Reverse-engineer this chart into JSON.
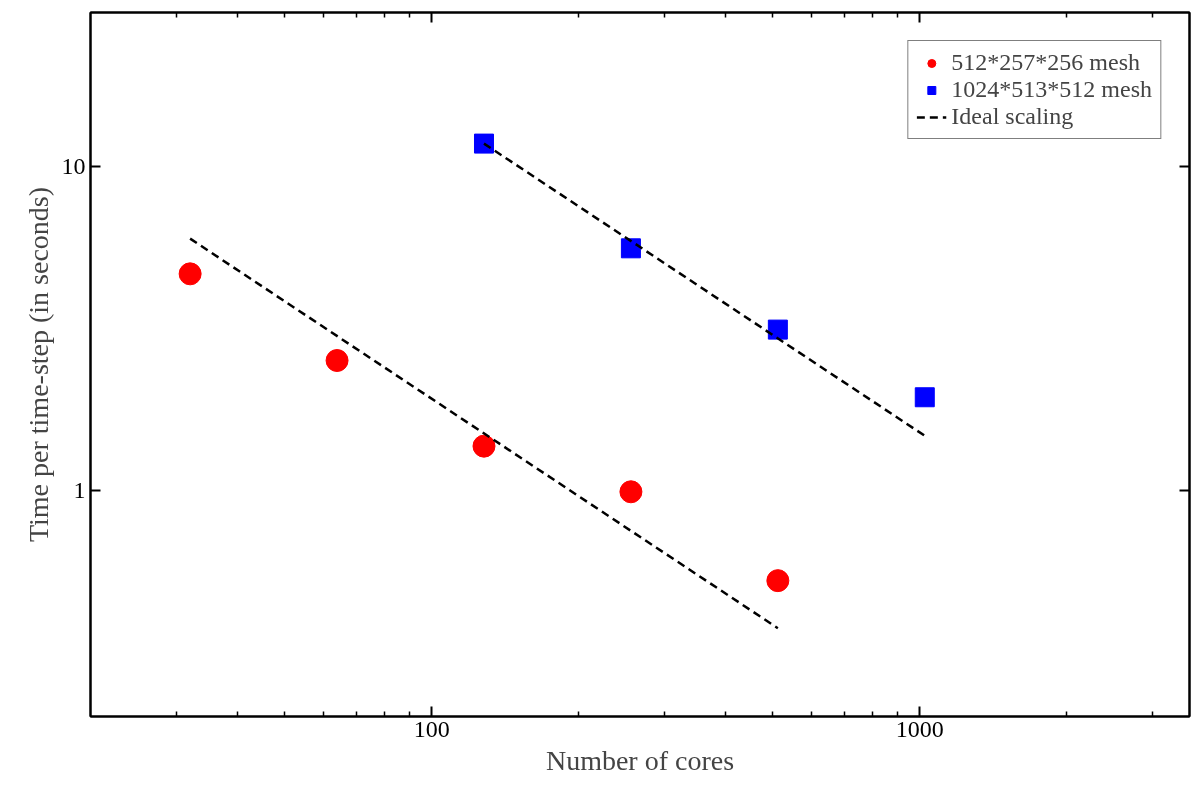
{
  "chart_data": {
    "type": "scatter",
    "xlabel": "Number of cores",
    "ylabel": "Time per time-step (in seconds)",
    "log": "xy",
    "xlim": [
      20,
      3570
    ],
    "ylim": [
      0.2,
      30
    ],
    "xticks": [
      {
        "value": 30,
        "label": null
      },
      {
        "value": 40,
        "label": null
      },
      {
        "value": 50,
        "label": null
      },
      {
        "value": 60,
        "label": null
      },
      {
        "value": 70,
        "label": null
      },
      {
        "value": 80,
        "label": null
      },
      {
        "value": 90,
        "label": null
      },
      100,
      {
        "value": 200,
        "label": null
      },
      {
        "value": 300,
        "label": null
      },
      {
        "value": 400,
        "label": null
      },
      {
        "value": 500,
        "label": null
      },
      {
        "value": 600,
        "label": null
      },
      {
        "value": 700,
        "label": null
      },
      {
        "value": 800,
        "label": null
      },
      {
        "value": 900,
        "label": null
      },
      1000,
      {
        "value": 2000,
        "label": null
      },
      {
        "value": 3000,
        "label": null
      }
    ],
    "yticks": [
      1,
      10
    ],
    "grid": false,
    "legend": "top right",
    "series": [
      {
        "name": "512*257*256 mesh",
        "marker": "circle",
        "color": "#ff0000",
        "x": [
          32,
          64,
          128,
          256,
          512
        ],
        "values": [
          4.67,
          2.52,
          1.37,
          0.99,
          0.526
        ]
      },
      {
        "name": "1024*513*512 mesh",
        "marker": "square",
        "color": "#0000ff",
        "x": [
          128,
          256,
          512,
          1024
        ],
        "values": [
          11.8,
          5.6,
          3.14,
          1.94
        ]
      },
      {
        "name": "Ideal scaling",
        "type": "line",
        "line_style": "dashed",
        "color": "#000000",
        "x": [
          32,
          512
        ],
        "values": [
          6.0,
          0.375
        ]
      },
      {
        "type": "line",
        "line_style": "dashed",
        "color": "#000000",
        "x": [
          128,
          1024
        ],
        "values": [
          11.8,
          1.475
        ]
      }
    ]
  }
}
